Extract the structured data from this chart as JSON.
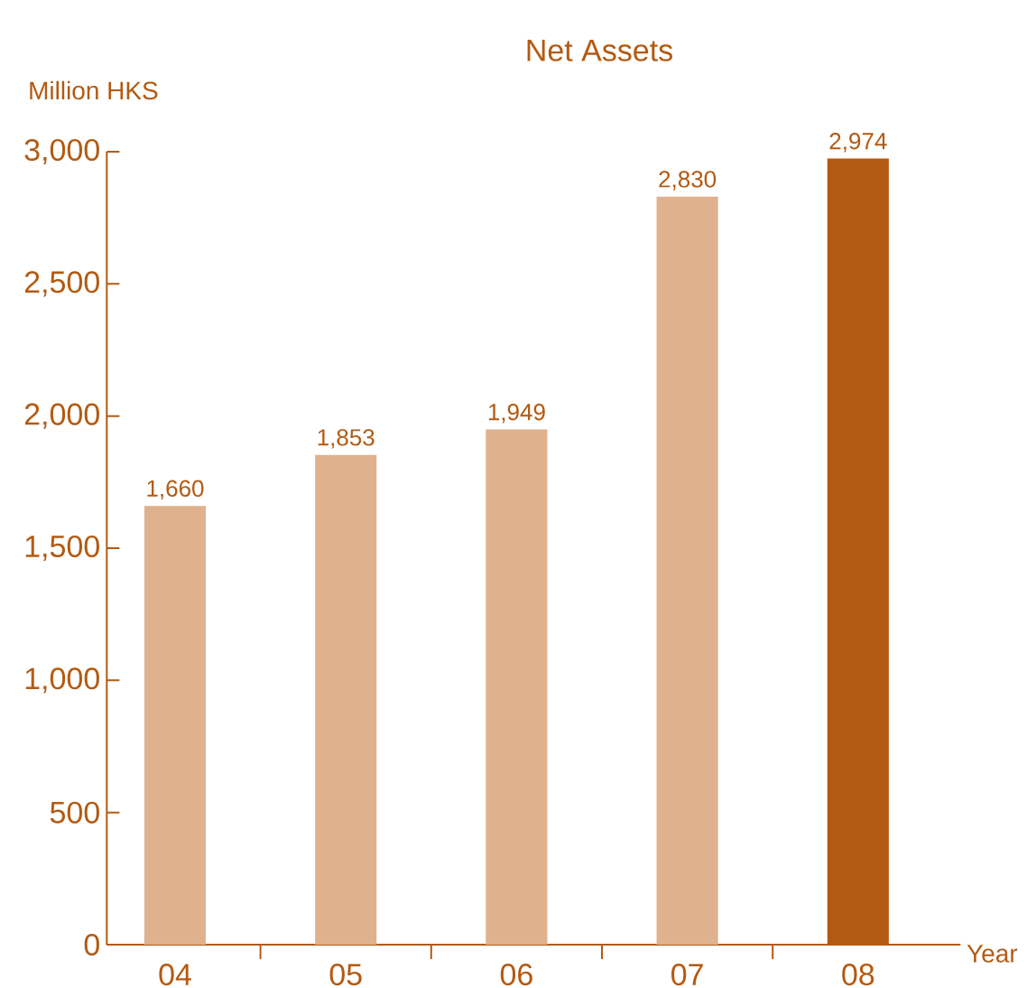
{
  "chart_data": {
    "type": "bar",
    "title": "Net Assets",
    "ylabel": "Million HKS",
    "xlabel": "Year",
    "categories": [
      "04",
      "05",
      "06",
      "07",
      "08"
    ],
    "values": [
      1660,
      1853,
      1949,
      2830,
      2974
    ],
    "value_labels": [
      "1,660",
      "1,853",
      "1,949",
      "2,830",
      "2,974"
    ],
    "colors": [
      "#dfb18c",
      "#dfb18c",
      "#dfb18c",
      "#dfb18c",
      "#b35a12"
    ],
    "ylim": [
      0,
      3000
    ],
    "yticks": [
      0,
      500,
      {
        "value": 1000,
        "label": "1,000"
      },
      {
        "value": 1500,
        "label": "1,500"
      },
      {
        "value": 2000,
        "label": "2,000"
      },
      {
        "value": 2500,
        "label": "2,500"
      },
      {
        "value": 3000,
        "label": "3,000"
      }
    ],
    "grid": false
  }
}
